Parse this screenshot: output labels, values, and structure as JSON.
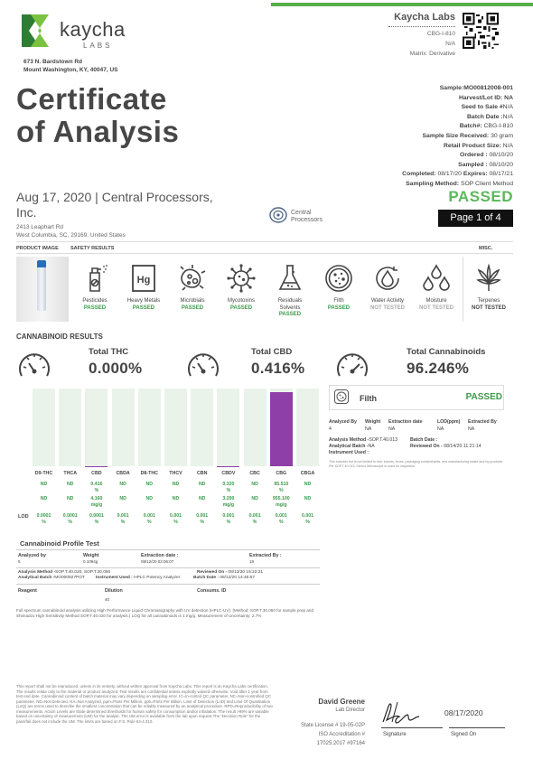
{
  "header": {
    "logo_word": "kaycha",
    "logo_sub": "LABS",
    "address_line1": "673 N. Bardstown Rd",
    "address_line2": "Mount Washington, KY, 40047, US",
    "title_line1": "Certificate",
    "title_line2": "of Analysis",
    "lab_name": "Kaycha Labs",
    "lab_id": "CBG-I-810",
    "lab_na": "N/A",
    "matrix": "Matrix: Derivative",
    "qr_icon": "qr-code-icon",
    "accent_color": "#58b04a"
  },
  "sample": {
    "sample_label": "Sample:",
    "sample_value": "MO00812008-001",
    "harvest_label": "Harvest/Lot ID:",
    "harvest_value": "NA",
    "seed_label": "Seed to Sale #",
    "seed_value": "N/A",
    "batch_date_label": "Batch Date :",
    "batch_date_value": "N/A",
    "batch_label": "Batch#:",
    "batch_value": "CBG-I-810",
    "size_label": "Sample Size Received:",
    "size_value": "30 gram",
    "retail_label": "Retail Product Size:",
    "retail_value": "N/A",
    "ordered_label": "Ordered :",
    "ordered_value": "08/10/20",
    "sampled_label": "Sampled :",
    "sampled_value": "08/10/20",
    "completed_label": "Completed:",
    "completed_value": "08/17/20",
    "expires_label": "Expires:",
    "expires_value": "08/17/21",
    "method_label": "Sampling Method:",
    "method_value": "SOP Client Method"
  },
  "client": {
    "date_line1": "Aug 17, 2020 | Central Processors,",
    "date_line2": "Inc.",
    "addr1": "2413 Leaphart Rd",
    "addr2": "West Columbia, SC, 29169, United States",
    "logo_text1": "Central",
    "logo_text2": "Processors",
    "status": "PASSED",
    "page": "Page 1 of 4"
  },
  "sections": {
    "product_image": "PRODUCT IMAGE",
    "safety_results": "SAFETY RESULTS",
    "misc": "MISC."
  },
  "safety": [
    {
      "name": "Pesticides",
      "status": "PASSED",
      "icon": "spray-bottle-icon",
      "kind": "pass"
    },
    {
      "name": "Heavy Metals",
      "status": "PASSED",
      "icon": "heavy-metal-hg-icon",
      "kind": "pass"
    },
    {
      "name": "Microbials",
      "status": "PASSED",
      "icon": "microbe-icon",
      "kind": "pass"
    },
    {
      "name": "Mycotoxins",
      "status": "PASSED",
      "icon": "virus-icon",
      "kind": "pass"
    },
    {
      "name": "Residuals\nSolvents",
      "status": "PASSED",
      "icon": "flask-icon",
      "kind": "pass"
    },
    {
      "name": "Filth",
      "status": "PASSED",
      "icon": "petri-dish-icon",
      "kind": "pass"
    },
    {
      "name": "Water Activity",
      "status": "NOT TESTED",
      "icon": "water-drop-icon",
      "kind": "nt"
    },
    {
      "name": "Moisture",
      "status": "NOT TESTED",
      "icon": "droplets-icon",
      "kind": "nt"
    },
    {
      "name": "Terpenes",
      "status": "NOT TESTED",
      "icon": "terpene-leaf-icon",
      "kind": "ntb"
    }
  ],
  "cannabinoid": {
    "title": "CANNABINOID RESULTS",
    "total_thc_label": "Total THC",
    "total_thc_value": "0.000%",
    "total_cbd_label": "Total CBD",
    "total_cbd_value": "0.416%",
    "total_cann_label": "Total Cannabinoids",
    "total_cann_value": "96.246%",
    "lod_label": "LOD"
  },
  "chart_data": {
    "type": "bar",
    "categories": [
      "D9-THC",
      "THCA",
      "CBD",
      "CBDA",
      "D8-THC",
      "THCV",
      "CBN",
      "CBDV",
      "CBC",
      "CBG",
      "CBGA"
    ],
    "values": [
      0,
      0,
      0.416,
      0,
      0,
      0,
      0,
      0.32,
      0,
      95.51,
      0
    ],
    "ylim": [
      0,
      100
    ],
    "bar_color": "#8e3fa8",
    "background_color": "#eaf3ea",
    "percent_row": [
      "ND",
      "ND",
      "0.416\n%",
      "ND",
      "ND",
      "ND",
      "ND",
      "0.320\n%",
      "ND",
      "95.510\n%",
      "ND"
    ],
    "mgg_row": [
      "ND",
      "ND",
      "4.160\nmg/g",
      "ND",
      "ND",
      "ND",
      "ND",
      "3.200\nmg/g",
      "ND",
      "955.100\nmg/g",
      "ND"
    ],
    "lod_row": [
      "0.0001\n%",
      "0.0001\n%",
      "0.0001\n%",
      "0.001\n%",
      "0.001\n%",
      "0.001\n%",
      "0.001\n%",
      "0.001\n%",
      "0.001\n%",
      "0.001\n%",
      "0.001\n%"
    ]
  },
  "filth": {
    "name": "Filth",
    "status": "PASSED",
    "analyzed_by_label": "Analyzed By",
    "analyzed_by": "4",
    "weight_label": "Weight",
    "weight": "NA",
    "extraction_date_label": "Extraction date",
    "extraction_date": "NA",
    "lod_label": "LOD(ppm)",
    "lod": "NA",
    "extracted_by_label": "Extracted By",
    "extracted_by": "NA",
    "method_label": "Analysis Method -",
    "method": "SOP.T.40.013",
    "batch_date_label": "Batch Date :",
    "batch_date": "",
    "batch_label": "Analytical Batch -",
    "batch": "NA",
    "reviewed_label": "Reviewed On -",
    "reviewed": "08/14/20 11:21:14",
    "instrument_label": "Instrument Used :",
    "note": "This includes but is not limited to hair, insects, feces, packaging contaminants, and manufacturing waste and by-products. Per SOP.T.40.013: Stereo Microscope is used for inspection."
  },
  "profile": {
    "title": "Cannabinoid Profile Test",
    "analyzed_by_label": "Analyzed by",
    "analyzed_by": "5",
    "weight_label": "Weight",
    "weight": "0.1094g",
    "extraction_date_label": "Extraction date :",
    "extraction_date": "08/12/20 02:06:07",
    "extracted_by_label": "Extracted By :",
    "extracted_by": "19",
    "method_label": "Analysis Method -",
    "method": "SOP.T.40.020, SOP.T.30.050",
    "batch_label": "Analytical Batch -",
    "batch": "MO000927POT",
    "instrument_label": "Instrument Used :",
    "instrument": "HPLC Potency Analyzer",
    "reviewed_label": "Reviewed On -",
    "reviewed": "08/13/20 15:22:21",
    "batch_date_label": "Batch Date :",
    "batch_date": "08/12/20 14:46:57",
    "reagent_label": "Reagent",
    "dilution_label": "Dilution",
    "dilution": "40",
    "consums_label": "Consums. ID",
    "note": "Full spectrum cannabinoid analysis utilizing High Performance Liquid Chromatography with UV detection (HPLC-UV). (Method: SOP.T.30.050 for sample prep and Shimadzu High Sensitivity Method SOP.T.40.020 for analysis.) LOQ for all cannabinoids is 1 mg/g. Measurement of Uncertainty: 2.7%"
  },
  "footer": {
    "disclaimer": "This report shall not be reproduced, unless in its entirety, without written approval from Kaycha Labs. This report is an Kaycha Labs certification. The results relate only to the material or product analyzed. Test results are confidential unless explicitly waived otherwise. Void after 1 year from test end date. Cannabinoid content of batch material may vary depending on sampling error. IC=In-control QC parameter, NC=Non-controlled QC parameter, ND=Not Detected, NA=Not Analyzed, ppm=Parts Per Million, ppb=Parts Per Billion. Limit of Detection (LoD) and Limit Of Quantitation (LoQ) are terms used to describe the smallest concentration that can be reliably measured by an analytical procedure. RPD=Reproducibility of two measurements. Action Levels are State determined thresholds for human safety for consumption and/or inhalation. The result >99% are variable based on uncertainty of measurement (UM) for the analyte. The UM error is available from the lab upon request.The \"Decision Rule\" for the pass/fail does not include the UM. The limits are based on F.S. Rule 64-4.310.",
    "signer": "David Greene",
    "role": "Lab Director",
    "license": "State License # 19-05-02P",
    "iso": "ISO Accreditation #",
    "iso_num": "17025:2017 #97164",
    "signature_label": "Signature",
    "signed_date": "08/17/2020",
    "signed_on_label": "Signed On"
  }
}
